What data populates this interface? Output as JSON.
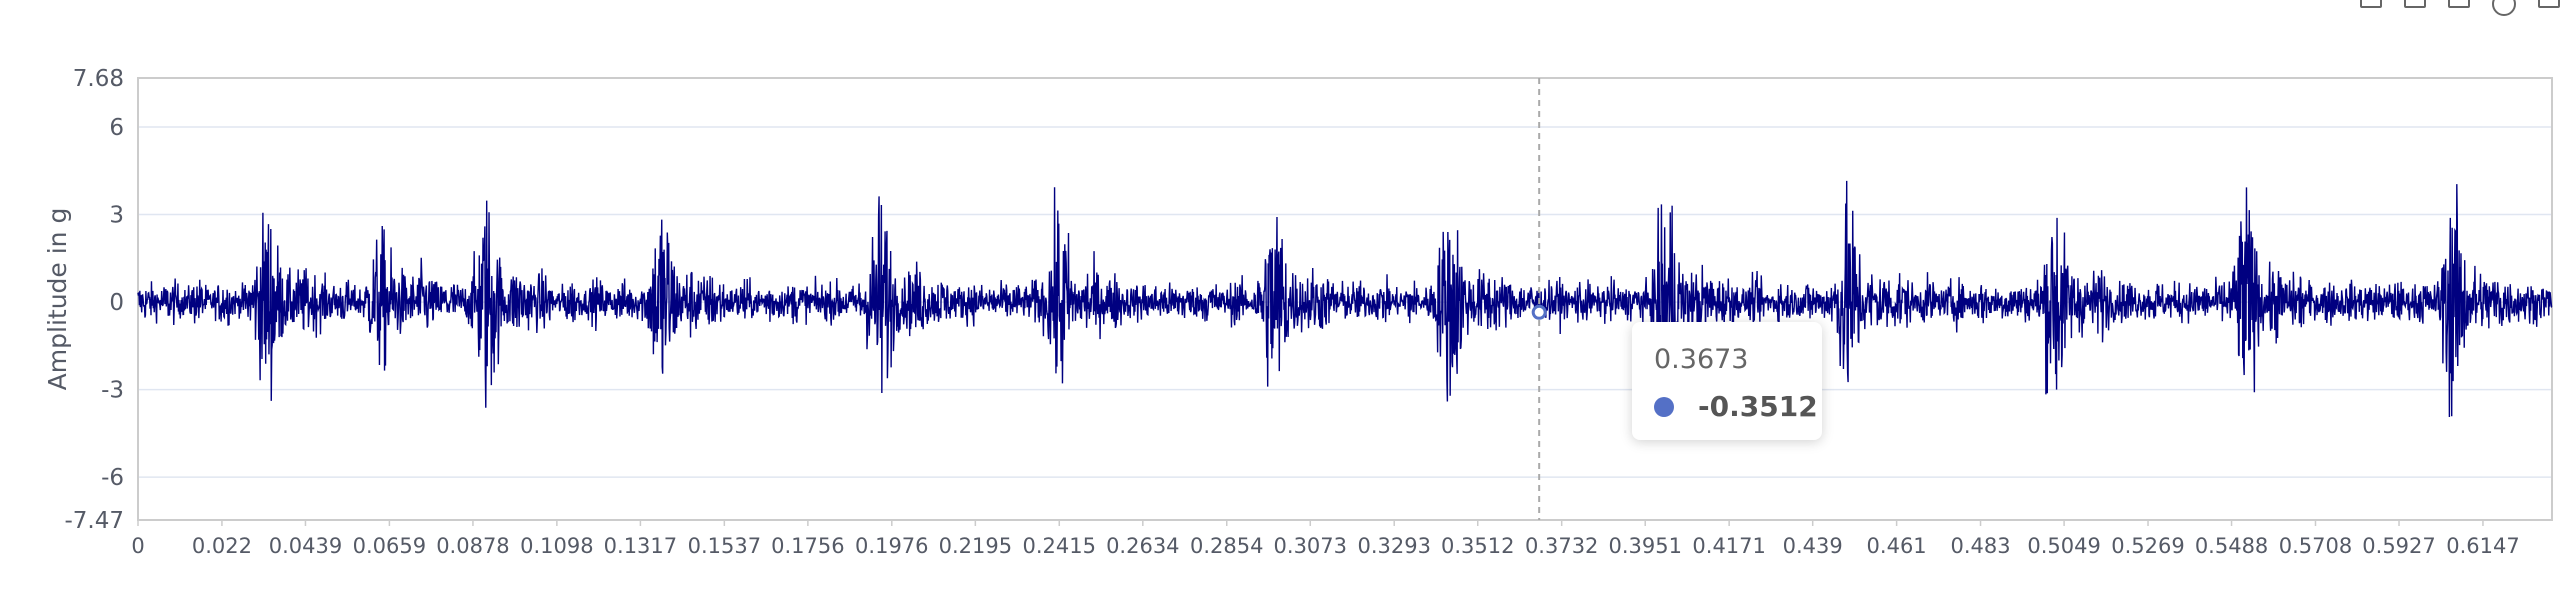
{
  "toolbar": {
    "icons": [
      "zoom-icon",
      "zoom-reset-icon",
      "data-view-icon",
      "restore-icon",
      "save-image-icon"
    ]
  },
  "colors": {
    "series": "#000080",
    "marker": "#5470c6",
    "grid": "#e0e6f1",
    "axis": "#cccccc",
    "crosshair": "#aaaaaa"
  },
  "chart_data": {
    "type": "line",
    "ylabel": "Amplitude in g",
    "xlabel": "",
    "ylim": [
      -7.47,
      7.68
    ],
    "xlim": [
      0,
      0.6328
    ],
    "y_ticks": [
      "7.68",
      "6",
      "3",
      "0",
      "-3",
      "-6",
      "-7.47"
    ],
    "x_ticks": [
      "0",
      "0.022",
      "0.0439",
      "0.0659",
      "0.0878",
      "0.1098",
      "0.1317",
      "0.1537",
      "0.1756",
      "0.1976",
      "0.2195",
      "0.2415",
      "0.2634",
      "0.2854",
      "0.3073",
      "0.3293",
      "0.3512",
      "0.3732",
      "0.3951",
      "0.4171",
      "0.439",
      "0.461",
      "0.483",
      "0.5049",
      "0.5269",
      "0.5488",
      "0.5708",
      "0.5927",
      "0.6147"
    ],
    "series_description": "dense vibration signal, noise within about ±1.5 g with impulse bursts",
    "bursts": [
      {
        "x": 0.0339,
        "amp": 4.2
      },
      {
        "x": 0.064,
        "amp": 2.9
      },
      {
        "x": 0.0915,
        "amp": 4.8
      },
      {
        "x": 0.1375,
        "amp": 4.6
      },
      {
        "x": 0.1945,
        "amp": 4.8
      },
      {
        "x": 0.2415,
        "amp": 4.1
      },
      {
        "x": 0.298,
        "amp": 4.7
      },
      {
        "x": 0.344,
        "amp": 4.6
      },
      {
        "x": 0.401,
        "amp": 5.0
      },
      {
        "x": 0.4485,
        "amp": 4.6
      },
      {
        "x": 0.5025,
        "amp": 4.9
      },
      {
        "x": 0.5525,
        "amp": 4.6
      },
      {
        "x": 0.607,
        "amp": 4.8
      }
    ],
    "grid": true,
    "tooltip": {
      "x": "0.3673",
      "value": "-0.3512"
    }
  }
}
